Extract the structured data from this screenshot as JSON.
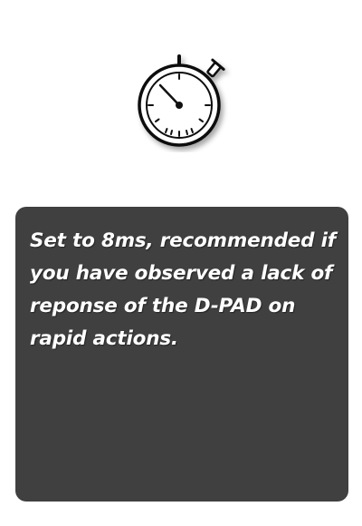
{
  "icon": {
    "name": "stopwatch-icon"
  },
  "card": {
    "description": "Set to 8ms, recommended if you have observed a lack of reponse of the D-PAD on rapid actions."
  },
  "colors": {
    "background": "#ffffff",
    "card_background": "#404040",
    "card_text": "#ffffff",
    "icon_stroke": "#111111"
  }
}
